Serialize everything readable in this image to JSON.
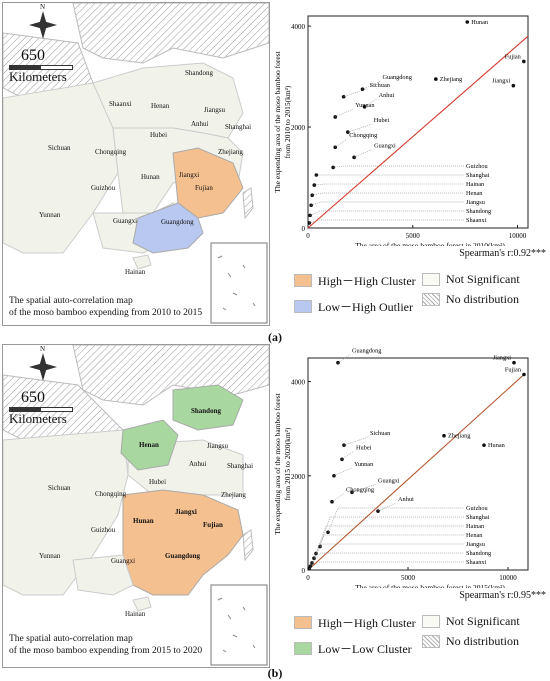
{
  "panels": [
    {
      "id": "a",
      "caption": "(a)",
      "scale_number": "650",
      "scale_unit": "Kilometers",
      "compass": "N",
      "map_title_line1": "The spatial auto-correlation map",
      "map_title_line2": "of the moso bamboo expending from 2010 to 2015",
      "provinces": [
        "Shandong",
        "Shaanxi",
        "Henan",
        "Jiangsu",
        "Anhui",
        "Shanghai",
        "Hubei",
        "Sichuan",
        "Chongqing",
        "Zhejiang",
        "Hunan",
        "Jiangxi",
        "Guizhou",
        "Fujian",
        "Yunnan",
        "Guangxi",
        "Guangdong",
        "Hainan"
      ],
      "legend": {
        "item1": "High－High Cluster",
        "item1_color": "#f5c090",
        "item2": "Low－High Outlier",
        "item2_color": "#b8c8f0",
        "item3": "Not Significant",
        "item4": "No distribution"
      },
      "spearman": "Spearman's r:0.92***",
      "chart_data": {
        "type": "scatter",
        "xlabel": "The area of the moso bamboo forest in 2010(km²)",
        "ylabel_line1": "The expending area of the moso bamboo forest",
        "ylabel_line2": "from 2010 to 2015(km²)",
        "xlim": [
          0,
          10500
        ],
        "ylim": [
          0,
          4200
        ],
        "xticks": [
          "0",
          "5000",
          "10000"
        ],
        "yticks": [
          "0",
          "2000",
          "4000"
        ],
        "trend": {
          "x": [
            0,
            10500
          ],
          "y": [
            0,
            3800
          ],
          "color": "#d63b2e"
        },
        "points": [
          {
            "label": "Hunan",
            "x": 7600,
            "y": 4080
          },
          {
            "label": "Fujian",
            "x": 10300,
            "y": 3300
          },
          {
            "label": "Zhejiang",
            "x": 6100,
            "y": 2950
          },
          {
            "label": "Jiangxi",
            "x": 9800,
            "y": 2820
          },
          {
            "label": "Guangdong",
            "x": 2600,
            "y": 2750
          },
          {
            "label": "Sichuan",
            "x": 1700,
            "y": 2600
          },
          {
            "label": "Anhui",
            "x": 2700,
            "y": 2400
          },
          {
            "label": "Yunnan",
            "x": 1300,
            "y": 2200
          },
          {
            "label": "Hubei",
            "x": 1900,
            "y": 1900
          },
          {
            "label": "Chongqing",
            "x": 1300,
            "y": 1600
          },
          {
            "label": "Guangxi",
            "x": 2200,
            "y": 1400
          },
          {
            "label": "Guizhou",
            "x": 1200,
            "y": 1200
          },
          {
            "label": "Shanghai",
            "x": 400,
            "y": 1050
          },
          {
            "label": "Hainan",
            "x": 300,
            "y": 850
          },
          {
            "label": "Henan",
            "x": 200,
            "y": 650
          },
          {
            "label": "Jiangsu",
            "x": 150,
            "y": 450
          },
          {
            "label": "Shandong",
            "x": 100,
            "y": 250
          },
          {
            "label": "Shaanxi",
            "x": 60,
            "y": 100
          }
        ]
      }
    },
    {
      "id": "b",
      "caption": "(b)",
      "scale_number": "650",
      "scale_unit": "Kilometers",
      "compass": "N",
      "map_title_line1": "The spatial auto-correlation map",
      "map_title_line2": "of the moso bamboo expending from 2015 to 2020",
      "provinces": [
        "Shandong",
        "Henan",
        "Jiangsu",
        "Anhui",
        "Shanghai",
        "Hubei",
        "Sichuan",
        "Chongqing",
        "Zhejiang",
        "Hunan",
        "Jiangxi",
        "Guizhou",
        "Fujian",
        "Yunnan",
        "Guangxi",
        "Guangdong",
        "Hainan"
      ],
      "legend": {
        "item1": "High－High Cluster",
        "item1_color": "#f5c090",
        "item2": "Low－Low Cluster",
        "item2_color": "#a8d8a0",
        "item3": "Not Significant",
        "item4": "No distribution"
      },
      "spearman": "Spearman's r:0.95***",
      "chart_data": {
        "type": "scatter",
        "xlabel": "The area of the moso bamboo forest in 2015(km²)",
        "ylabel_line1": "The expending area of the moso bamboo forest",
        "ylabel_line2": "from 2015 to 2020(km²)",
        "xlim": [
          0,
          11000
        ],
        "ylim": [
          0,
          4500
        ],
        "xticks": [
          "0",
          "5000",
          "10000"
        ],
        "yticks": [
          "0",
          "2000",
          "4000"
        ],
        "trend": {
          "x": [
            0,
            10800
          ],
          "y": [
            0,
            4150
          ],
          "color": "#b5552e"
        },
        "points": [
          {
            "label": "Guangdong",
            "x": 1500,
            "y": 4400
          },
          {
            "label": "Jiangxi",
            "x": 10300,
            "y": 4400
          },
          {
            "label": "Fujian",
            "x": 10800,
            "y": 4150
          },
          {
            "label": "Zhejiang",
            "x": 6800,
            "y": 2850
          },
          {
            "label": "Hunan",
            "x": 8800,
            "y": 2650
          },
          {
            "label": "Sichuan",
            "x": 1800,
            "y": 2650
          },
          {
            "label": "Hubei",
            "x": 1700,
            "y": 2350
          },
          {
            "label": "Yunnan",
            "x": 1300,
            "y": 2000
          },
          {
            "label": "Guangxi",
            "x": 2200,
            "y": 1650
          },
          {
            "label": "Chongqing",
            "x": 1200,
            "y": 1450
          },
          {
            "label": "Anhui",
            "x": 3500,
            "y": 1250
          },
          {
            "label": "Guizhou",
            "x": 1000,
            "y": 800
          },
          {
            "label": "Shanghai",
            "x": 600,
            "y": 500
          },
          {
            "label": "Hainan",
            "x": 400,
            "y": 350
          },
          {
            "label": "Henan",
            "x": 300,
            "y": 250
          },
          {
            "label": "Jiangsu",
            "x": 200,
            "y": 150
          },
          {
            "label": "Shandong",
            "x": 120,
            "y": 80
          },
          {
            "label": "Shaanxi",
            "x": 60,
            "y": 30
          }
        ]
      }
    }
  ]
}
